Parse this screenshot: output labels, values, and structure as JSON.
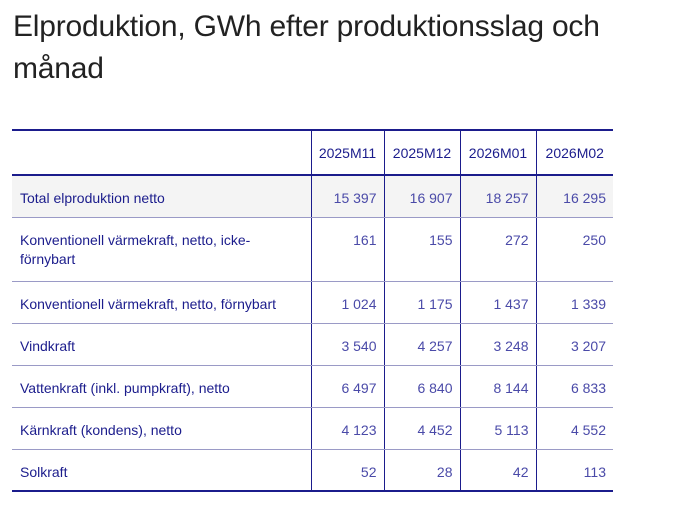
{
  "title": "Elproduktion, GWh efter produktionsslag och månad",
  "table": {
    "columns": [
      "2025M11",
      "2025M12",
      "2026M01",
      "2026M02"
    ],
    "rows": [
      {
        "label": "Total elproduktion netto",
        "values": [
          "15 397",
          "16 907",
          "18 257",
          "16 295"
        ]
      },
      {
        "label": "Konventionell värmekraft, netto, icke-förnybart",
        "values": [
          "161",
          "155",
          "272",
          "250"
        ]
      },
      {
        "label": "Konventionell värmekraft, netto, förnybart",
        "values": [
          "1 024",
          "1 175",
          "1 437",
          "1 339"
        ]
      },
      {
        "label": "Vindkraft",
        "values": [
          "3 540",
          "4 257",
          "3 248",
          "3 207"
        ]
      },
      {
        "label": "Vattenkraft (inkl. pumpkraft), netto",
        "values": [
          "6 497",
          "6 840",
          "8 144",
          "6 833"
        ]
      },
      {
        "label": "Kärnkraft (kondens), netto",
        "values": [
          "4 123",
          "4 452",
          "5 113",
          "4 552"
        ]
      },
      {
        "label": "Solkraft",
        "values": [
          "52",
          "28",
          "42",
          "113"
        ]
      }
    ]
  }
}
